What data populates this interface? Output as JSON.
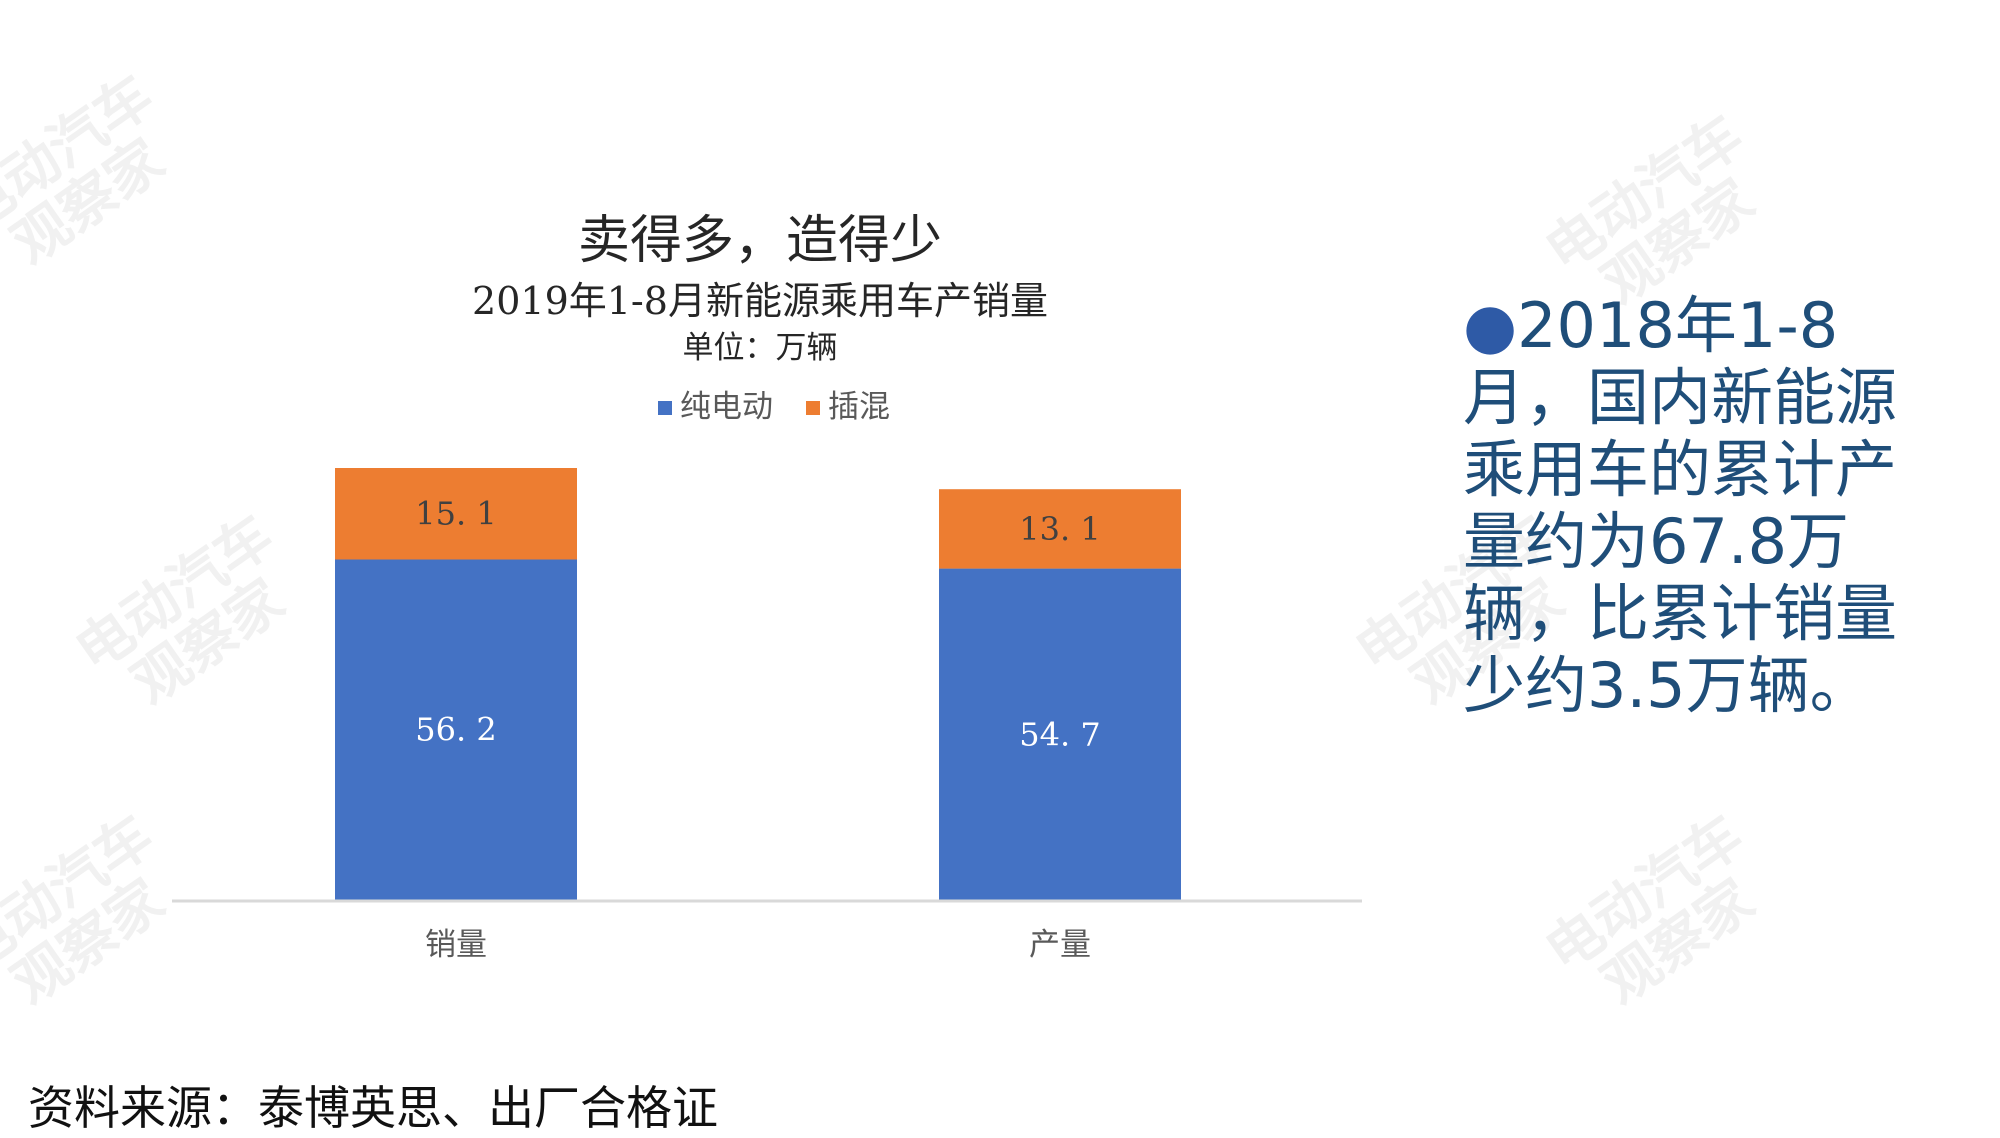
{
  "chart_data": {
    "type": "bar",
    "stacked": true,
    "title": "卖得多，造得少",
    "subtitle": "2019年1-8月新能源乘用车产销量",
    "unit": "单位：万辆",
    "categories": [
      "销量",
      "产量"
    ],
    "series": [
      {
        "name": "纯电动",
        "values": [
          56.2,
          54.7
        ],
        "color": "#4472C4",
        "value_labels": [
          "56. 2",
          "54. 7"
        ]
      },
      {
        "name": "插混",
        "values": [
          15.1,
          13.1
        ],
        "color": "#ED7D31",
        "value_labels": [
          "15. 1",
          "13. 1"
        ]
      }
    ],
    "ylim": [
      0,
      71.3
    ],
    "grid": false,
    "legend_position": "top"
  },
  "bullet": {
    "marker": "●",
    "text": "2018年1-8月，国内新能源乘用车的累计产量约为67.8万辆，比累计销量少约3.5万辆。"
  },
  "source": "资料来源：泰博英思、出厂合格证",
  "watermark": {
    "text_line1": "电动汽车",
    "text_line2": "观察家"
  }
}
